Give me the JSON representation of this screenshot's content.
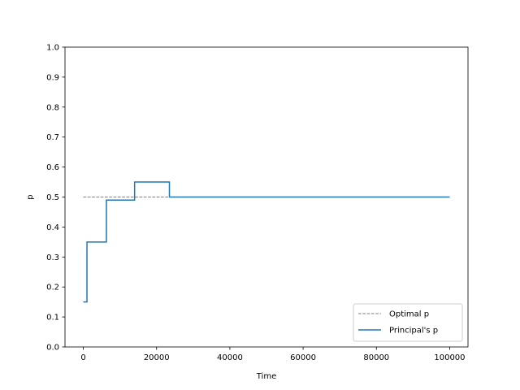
{
  "chart_data": {
    "type": "line",
    "title": "",
    "xlabel": "Time",
    "ylabel": "p",
    "xlim": [
      -5000,
      105000
    ],
    "ylim": [
      0.0,
      1.0
    ],
    "xticks": [
      0,
      20000,
      40000,
      60000,
      80000,
      100000
    ],
    "xtick_labels": [
      "0",
      "20000",
      "40000",
      "60000",
      "80000",
      "100000"
    ],
    "yticks": [
      0.0,
      0.1,
      0.2,
      0.3,
      0.4,
      0.5,
      0.6,
      0.7,
      0.8,
      0.9,
      1.0
    ],
    "ytick_labels": [
      "0.0",
      "0.1",
      "0.2",
      "0.3",
      "0.4",
      "0.5",
      "0.6",
      "0.7",
      "0.8",
      "0.9",
      "1.0"
    ],
    "grid": false,
    "legend_position": "lower-right",
    "series": [
      {
        "name": "Optimal p",
        "style": "dashed",
        "color": "#808080",
        "x": [
          0,
          100000
        ],
        "y": [
          0.5,
          0.5
        ]
      },
      {
        "name": "Principal's p",
        "style": "step",
        "color": "#1f77b4",
        "x": [
          0,
          1000,
          1000,
          6300,
          6300,
          14000,
          14000,
          23500,
          23500,
          100000
        ],
        "y": [
          0.15,
          0.15,
          0.35,
          0.35,
          0.49,
          0.49,
          0.55,
          0.55,
          0.5,
          0.5
        ]
      }
    ]
  }
}
